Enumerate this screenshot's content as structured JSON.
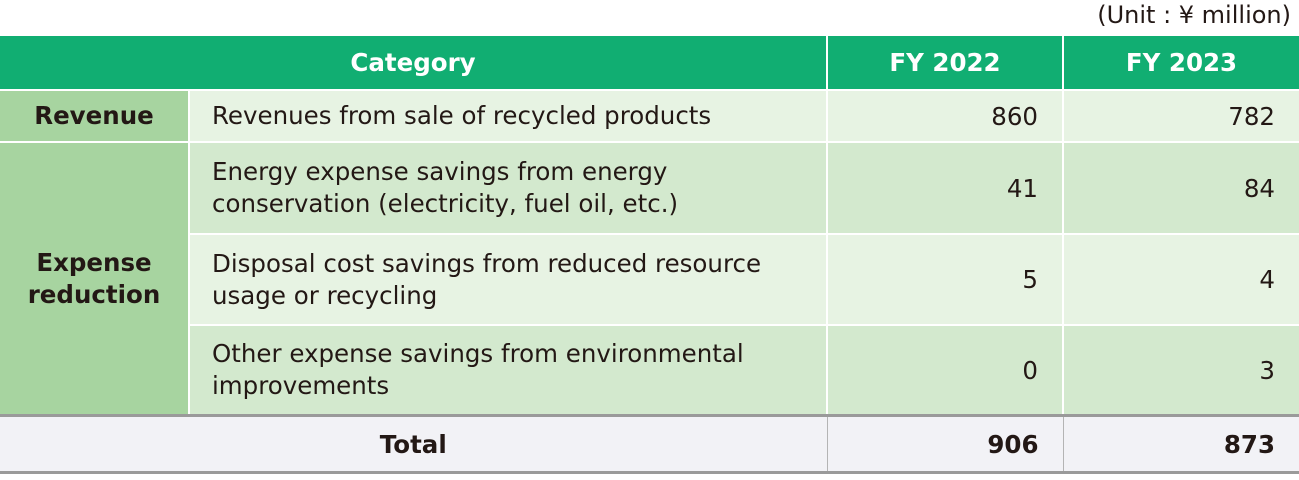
{
  "unit_label": "(Unit : ¥ million)",
  "header": {
    "category": "Category",
    "fy2022": "FY 2022",
    "fy2023": "FY 2023"
  },
  "rows": [
    {
      "group": "Revenue",
      "item": "Revenues from sale of recycled products",
      "fy2022": "860",
      "fy2023": "782"
    },
    {
      "group": "Expense reduction",
      "item": "Energy expense savings from energy conservation (electricity, fuel oil, etc.)",
      "fy2022": "41",
      "fy2023": "84"
    },
    {
      "item": "Disposal cost savings from reduced resource usage or recycling",
      "fy2022": "5",
      "fy2023": "4"
    },
    {
      "item": "Other expense savings from environmental improvements",
      "fy2022": "0",
      "fy2023": "3"
    }
  ],
  "total": {
    "label": "Total",
    "fy2022": "906",
    "fy2023": "873"
  },
  "colors": {
    "header_bg": "#11ae72",
    "category_bg": "#a7d4a0",
    "row_light": "#e7f3e3",
    "row_dark": "#d3e9ce",
    "total_bg": "#f2f2f6"
  }
}
